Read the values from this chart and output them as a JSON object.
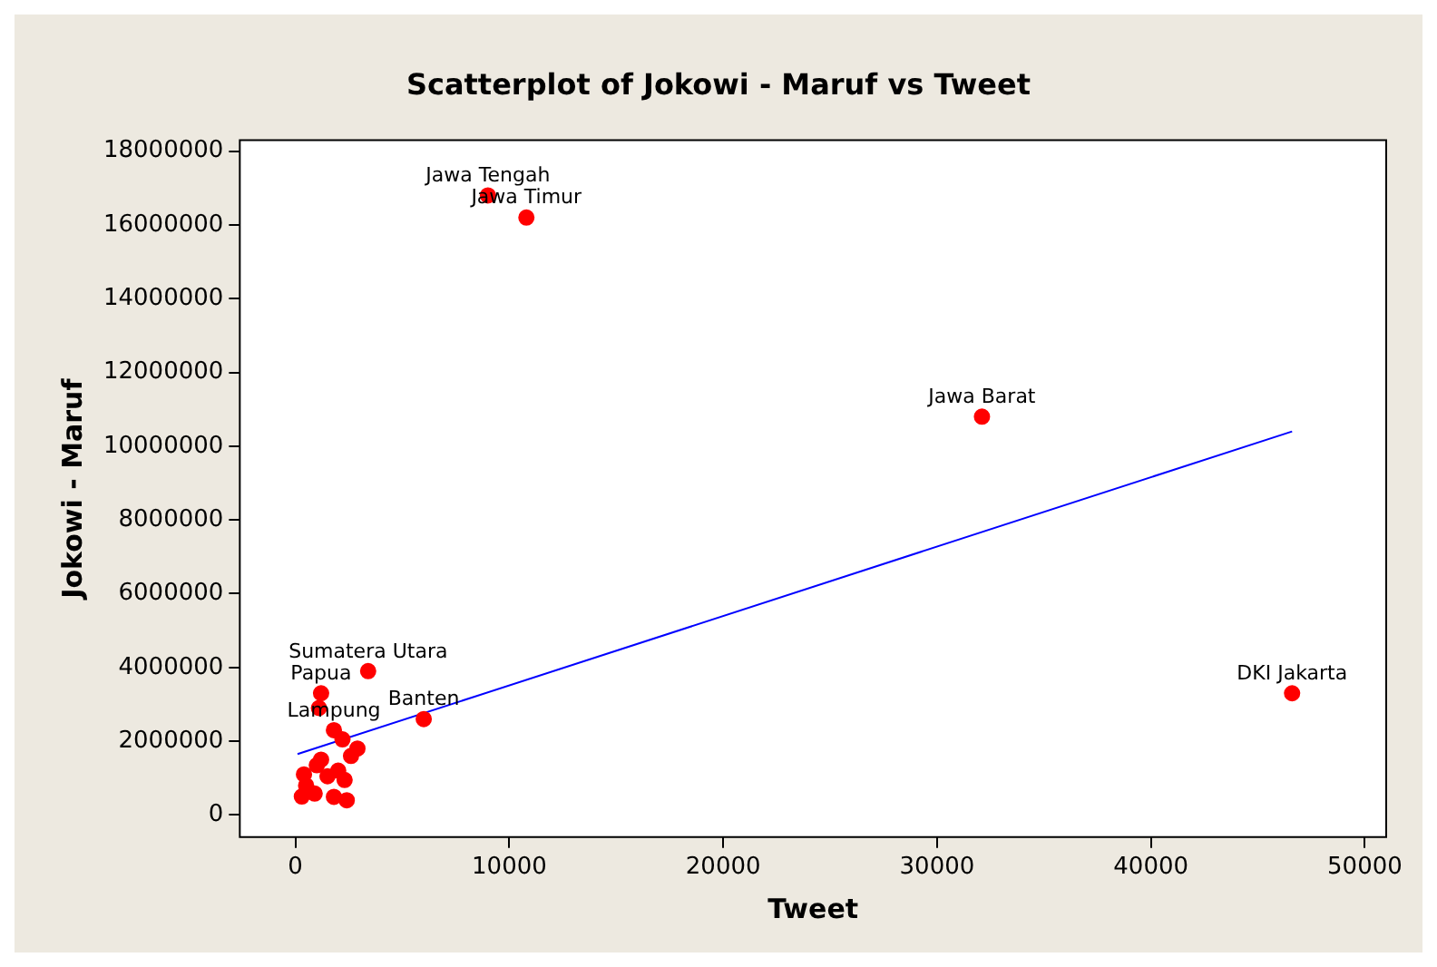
{
  "chart_data": {
    "type": "scatter",
    "title": "Scatterplot of Jokowi - Maruf vs Tweet",
    "xlabel": "Tweet",
    "ylabel": "Jokowi - Maruf",
    "xlim": [
      -2600,
      51000
    ],
    "ylim": [
      -600000,
      18300000
    ],
    "xticks": [
      0,
      10000,
      20000,
      30000,
      40000,
      50000
    ],
    "yticks": [
      0,
      2000000,
      4000000,
      6000000,
      8000000,
      10000000,
      12000000,
      14000000,
      16000000,
      18000000
    ],
    "grid": false,
    "legend": false,
    "series": [
      {
        "marker": "circle",
        "color": "#ff0000",
        "x": [
          9000,
          10800,
          32100,
          46600,
          3400,
          1200,
          1800,
          6000,
          1100,
          2200,
          2900,
          400,
          900,
          1800,
          2400,
          1200,
          2600,
          1500,
          300,
          2000,
          1000,
          2300,
          500
        ],
        "values": [
          16800000,
          16200000,
          10800000,
          3300000,
          3900000,
          3300000,
          2300000,
          2600000,
          2900000,
          2050000,
          1800000,
          1100000,
          580000,
          490000,
          400000,
          1500000,
          1600000,
          1050000,
          500000,
          1200000,
          1350000,
          950000,
          800000
        ]
      },
      {
        "type": "line",
        "color": "#0000ff",
        "x": [
          100,
          46600
        ],
        "values": [
          1650000,
          10400000
        ]
      }
    ],
    "annotations": [
      {
        "text": "Jawa Tengah",
        "x": 9000,
        "y": 16800000
      },
      {
        "text": "Jawa Timur",
        "x": 10800,
        "y": 16200000
      },
      {
        "text": "Jawa Barat",
        "x": 32100,
        "y": 10800000
      },
      {
        "text": "DKI Jakarta",
        "x": 46600,
        "y": 3300000
      },
      {
        "text": "Sumatera Utara",
        "x": 3400,
        "y": 3900000
      },
      {
        "text": "Papua",
        "x": 1200,
        "y": 3300000
      },
      {
        "text": "Lampung",
        "x": 1800,
        "y": 2300000
      },
      {
        "text": "Banten",
        "x": 6000,
        "y": 2600000
      }
    ]
  }
}
